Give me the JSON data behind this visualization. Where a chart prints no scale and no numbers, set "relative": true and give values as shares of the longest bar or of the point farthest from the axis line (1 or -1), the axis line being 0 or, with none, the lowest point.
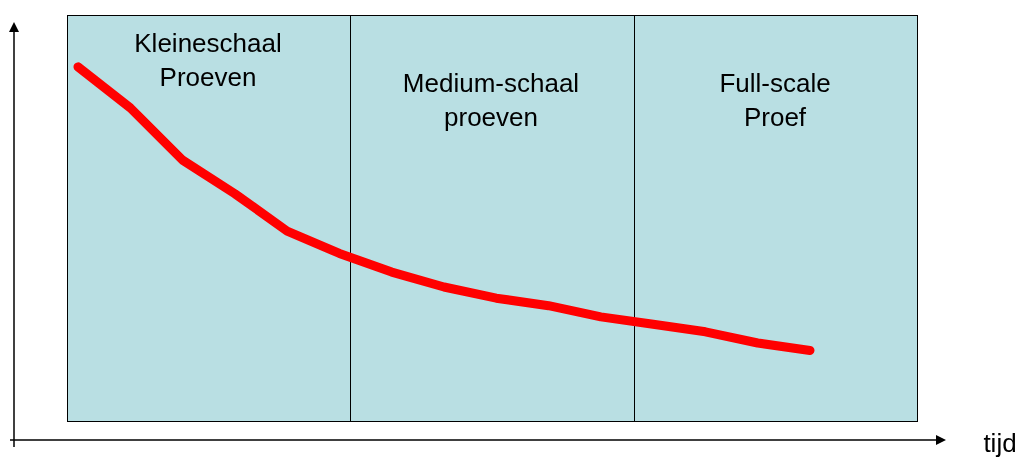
{
  "chart_data": {
    "type": "line",
    "relative": true,
    "categories": [
      null,
      null,
      null,
      null,
      null,
      null,
      null,
      null,
      null,
      null,
      null,
      null,
      null,
      null,
      null
    ],
    "series": [
      {
        "color": "#ff0000",
        "values": [
          1.0,
          0.89,
          0.75,
          0.66,
          0.56,
          0.5,
          0.45,
          0.41,
          0.38,
          0.36,
          0.33,
          0.31,
          0.29,
          0.26,
          0.24
        ]
      }
    ],
    "marker": "none",
    "line_style": "solid",
    "annotations": [
      "Kleineschaal\nProeven",
      "Medium-schaal\nproeven",
      "Full-scale\nProef",
      "tijd"
    ]
  }
}
